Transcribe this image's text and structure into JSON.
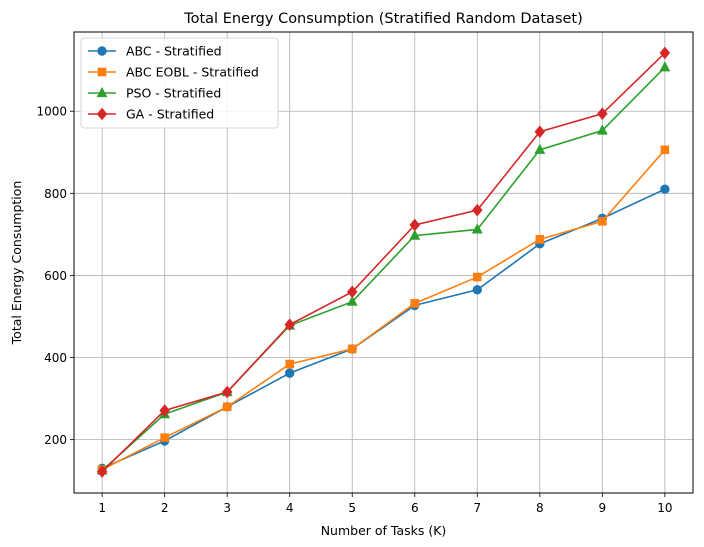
{
  "chart_data": {
    "type": "line",
    "title": "Total Energy Consumption (Stratified Random Dataset)",
    "xlabel": "Number of Tasks (K)",
    "ylabel": "Total Energy Consumption",
    "x": [
      1,
      2,
      3,
      4,
      5,
      6,
      7,
      8,
      9,
      10
    ],
    "xticks": [
      "1",
      "2",
      "3",
      "4",
      "5",
      "6",
      "7",
      "8",
      "9",
      "10"
    ],
    "yticks": [
      200,
      400,
      600,
      800,
      1000
    ],
    "xlim": [
      0.55,
      10.45
    ],
    "ylim": [
      70,
      1193
    ],
    "grid": true,
    "legend_position": "top-left",
    "series": [
      {
        "name": "ABC - Stratified",
        "color": "#1f77b4",
        "marker": "circle",
        "values": [
          130,
          197,
          280,
          362,
          421,
          527,
          565,
          677,
          739,
          810
        ]
      },
      {
        "name": "ABC EOBL - Stratified",
        "color": "#ff7f0e",
        "marker": "square",
        "values": [
          127,
          205,
          280,
          384,
          421,
          532,
          596,
          688,
          732,
          906
        ]
      },
      {
        "name": "PSO - Stratified",
        "color": "#2ca02c",
        "marker": "triangle",
        "values": [
          125,
          262,
          316,
          478,
          536,
          697,
          712,
          906,
          953,
          1107
        ]
      },
      {
        "name": "GA - Stratified",
        "color": "#d62728",
        "marker": "diamond",
        "values": [
          122,
          271,
          316,
          480,
          560,
          723,
          759,
          950,
          994,
          1142
        ]
      }
    ]
  }
}
